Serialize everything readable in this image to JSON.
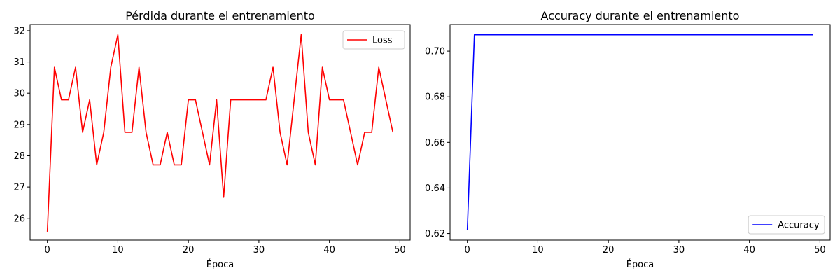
{
  "chart_data": [
    {
      "id": "loss",
      "type": "line",
      "title": "Pérdida durante el entrenamiento",
      "xlabel": "Época",
      "ylabel": "",
      "xlim": [
        -2.45,
        51.45
      ],
      "ylim": [
        25.3,
        32.2
      ],
      "xticks": [
        0,
        10,
        20,
        30,
        40,
        50
      ],
      "xtick_labels": [
        "0",
        "10",
        "20",
        "30",
        "40",
        "50"
      ],
      "yticks": [
        26,
        27,
        28,
        29,
        30,
        31,
        32
      ],
      "ytick_labels": [
        "26",
        "27",
        "28",
        "29",
        "30",
        "31",
        "32"
      ],
      "grid": false,
      "legend_position": "upper right",
      "series": [
        {
          "name": "Loss",
          "color": "#ff0000",
          "x": [
            0,
            1,
            2,
            3,
            4,
            5,
            6,
            7,
            8,
            9,
            10,
            11,
            12,
            13,
            14,
            15,
            16,
            17,
            18,
            19,
            20,
            21,
            22,
            23,
            24,
            25,
            26,
            27,
            28,
            29,
            30,
            31,
            32,
            33,
            34,
            35,
            36,
            37,
            38,
            39,
            40,
            41,
            42,
            43,
            44,
            45,
            46,
            47,
            48,
            49
          ],
          "y": [
            25.57,
            30.83,
            29.79,
            29.79,
            30.83,
            28.75,
            29.79,
            27.71,
            28.75,
            30.83,
            31.87,
            28.75,
            28.75,
            30.83,
            28.75,
            27.71,
            27.71,
            28.75,
            27.71,
            27.71,
            29.79,
            29.79,
            28.75,
            27.71,
            29.79,
            26.67,
            29.79,
            29.79,
            29.79,
            29.79,
            29.79,
            29.79,
            30.83,
            28.75,
            27.71,
            29.79,
            31.87,
            28.75,
            27.71,
            30.83,
            29.79,
            29.79,
            29.79,
            28.75,
            27.71,
            28.75,
            28.75,
            30.83,
            29.79,
            28.75
          ]
        }
      ]
    },
    {
      "id": "acc",
      "type": "line",
      "title": "Accuracy durante el entrenamiento",
      "xlabel": "Época",
      "ylabel": "",
      "xlim": [
        -2.45,
        51.45
      ],
      "ylim": [
        0.6171,
        0.7117
      ],
      "xticks": [
        0,
        10,
        20,
        30,
        40,
        50
      ],
      "xtick_labels": [
        "0",
        "10",
        "20",
        "30",
        "40",
        "50"
      ],
      "yticks": [
        0.62,
        0.64,
        0.66,
        0.68,
        0.7
      ],
      "ytick_labels": [
        "0.62",
        "0.64",
        "0.66",
        "0.68",
        "0.70"
      ],
      "grid": false,
      "legend_position": "lower right",
      "series": [
        {
          "name": "Accuracy",
          "color": "#0000ff",
          "x": [
            0,
            1,
            2,
            3,
            4,
            5,
            6,
            7,
            8,
            9,
            10,
            11,
            12,
            13,
            14,
            15,
            16,
            17,
            18,
            19,
            20,
            21,
            22,
            23,
            24,
            25,
            26,
            27,
            28,
            29,
            30,
            31,
            32,
            33,
            34,
            35,
            36,
            37,
            38,
            39,
            40,
            41,
            42,
            43,
            44,
            45,
            46,
            47,
            48,
            49
          ],
          "y": [
            0.6214,
            0.7072,
            0.7072,
            0.7072,
            0.7072,
            0.7072,
            0.7072,
            0.7072,
            0.7072,
            0.7072,
            0.7072,
            0.7072,
            0.7072,
            0.7072,
            0.7072,
            0.7072,
            0.7072,
            0.7072,
            0.7072,
            0.7072,
            0.7072,
            0.7072,
            0.7072,
            0.7072,
            0.7072,
            0.7072,
            0.7072,
            0.7072,
            0.7072,
            0.7072,
            0.7072,
            0.7072,
            0.7072,
            0.7072,
            0.7072,
            0.7072,
            0.7072,
            0.7072,
            0.7072,
            0.7072,
            0.7072,
            0.7072,
            0.7072,
            0.7072,
            0.7072,
            0.7072,
            0.7072,
            0.7072,
            0.7072,
            0.7072
          ]
        }
      ]
    }
  ]
}
